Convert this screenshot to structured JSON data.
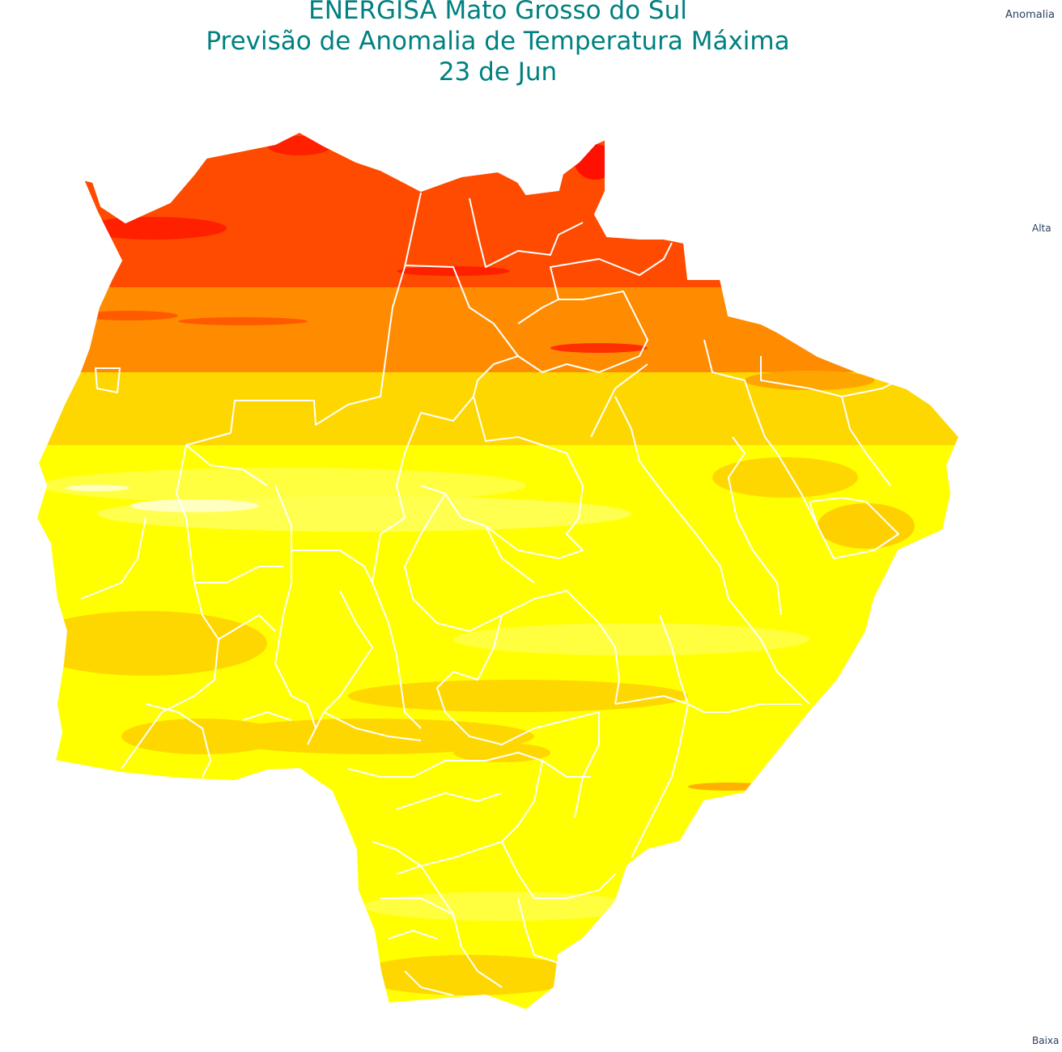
{
  "title": {
    "line1": "ENERGISA Mato Grosso do Sul",
    "line2": "Previsão de Anomalia de Temperatura Máxima",
    "line3": "23 de Jun"
  },
  "colorbar": {
    "title": "Anomalia",
    "high_label": "Alta",
    "low_label": "Baixa",
    "colors": [
      "#ffffff",
      "#ffff66",
      "#ffff00",
      "#ffcc00",
      "#ff8c00",
      "#ff4500",
      "#ff0000",
      "#cc0000",
      "#7a0000"
    ]
  },
  "map": {
    "region": "Mato Grosso do Sul",
    "field_colors": [
      "#ff4b00",
      "#ff8c00",
      "#ffd700",
      "#ffff40",
      "#ffff00"
    ],
    "boundary_color": "#ffffff"
  }
}
